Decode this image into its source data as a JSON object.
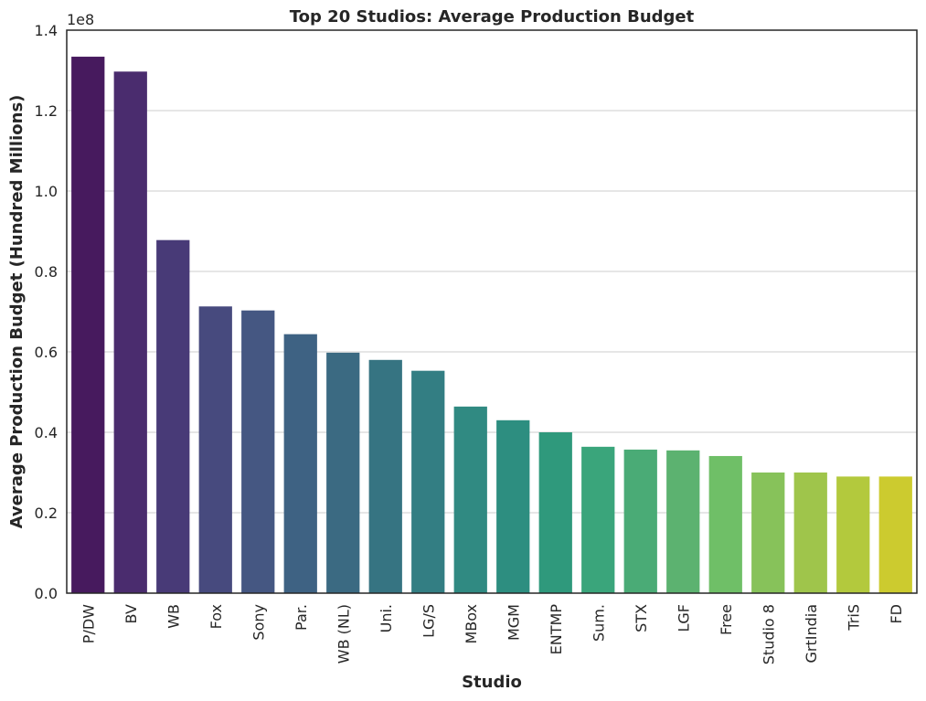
{
  "chart_data": {
    "type": "bar",
    "title": "Top 20 Studios: Average Production Budget",
    "xlabel": "Studio",
    "ylabel": "Average Production Budget (Hundred Millions)",
    "y_offset_label": "1e8",
    "ylim": [
      0,
      1.4
    ],
    "yticks": [
      "0.0",
      "0.2",
      "0.4",
      "0.6",
      "0.8",
      "1.0",
      "1.2",
      "1.4"
    ],
    "grid": "horizontal",
    "categories": [
      "P/DW",
      "BV",
      "WB",
      "Fox",
      "Sony",
      "Par.",
      "WB (NL)",
      "Uni.",
      "LG/S",
      "MBox",
      "MGM",
      "ENTMP",
      "Sum.",
      "STX",
      "LGF",
      "Free",
      "Studio 8",
      "GrtIndia",
      "TriS",
      "FD"
    ],
    "values": [
      1.334,
      1.297,
      0.878,
      0.713,
      0.703,
      0.644,
      0.598,
      0.58,
      0.553,
      0.464,
      0.43,
      0.4,
      0.364,
      0.357,
      0.355,
      0.341,
      0.3,
      0.3,
      0.29,
      0.29
    ],
    "colors": [
      "#471a5e",
      "#4a2c6e",
      "#483a77",
      "#474a7e",
      "#455782",
      "#3e6283",
      "#3b6a82",
      "#367482",
      "#337e83",
      "#308a82",
      "#2d8e80",
      "#2f997c",
      "#3aa57b",
      "#4aab76",
      "#5cb270",
      "#6fbf67",
      "#87c25a",
      "#9fc54b",
      "#b3c93d",
      "#cccb2f"
    ]
  }
}
